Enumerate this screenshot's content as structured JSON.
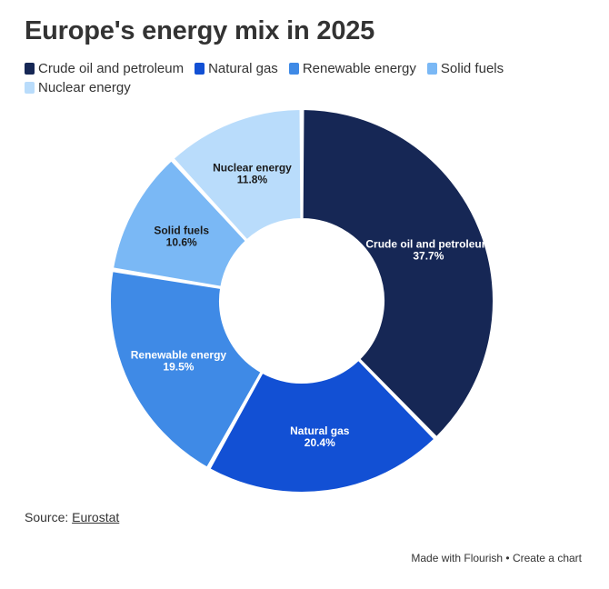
{
  "header": {
    "title": "Europe's energy mix in 2025"
  },
  "source": {
    "prefix": "Source: ",
    "link_text": "Eurostat"
  },
  "footer": {
    "made_with": "Made with Flourish",
    "separator": " • ",
    "create": "Create a chart"
  },
  "chart_data": {
    "type": "pie",
    "style": "donut",
    "legend_position": "top-left",
    "slices": [
      {
        "label": "Crude oil and petroleum",
        "value": 37.7,
        "display": "37.7%",
        "color": "#162755",
        "text_color": "#ffffff"
      },
      {
        "label": "Natural gas",
        "value": 20.4,
        "display": "20.4%",
        "color": "#1250d4",
        "text_color": "#ffffff"
      },
      {
        "label": "Renewable energy",
        "value": 19.5,
        "display": "19.5%",
        "color": "#3f8ae6",
        "text_color": "#ffffff"
      },
      {
        "label": "Solid fuels",
        "value": 10.6,
        "display": "10.6%",
        "color": "#7ab8f5",
        "text_color": "#1a1a1a"
      },
      {
        "label": "Nuclear energy",
        "value": 11.8,
        "display": "11.8%",
        "color": "#b9dcfb",
        "text_color": "#1a1a1a"
      }
    ]
  }
}
